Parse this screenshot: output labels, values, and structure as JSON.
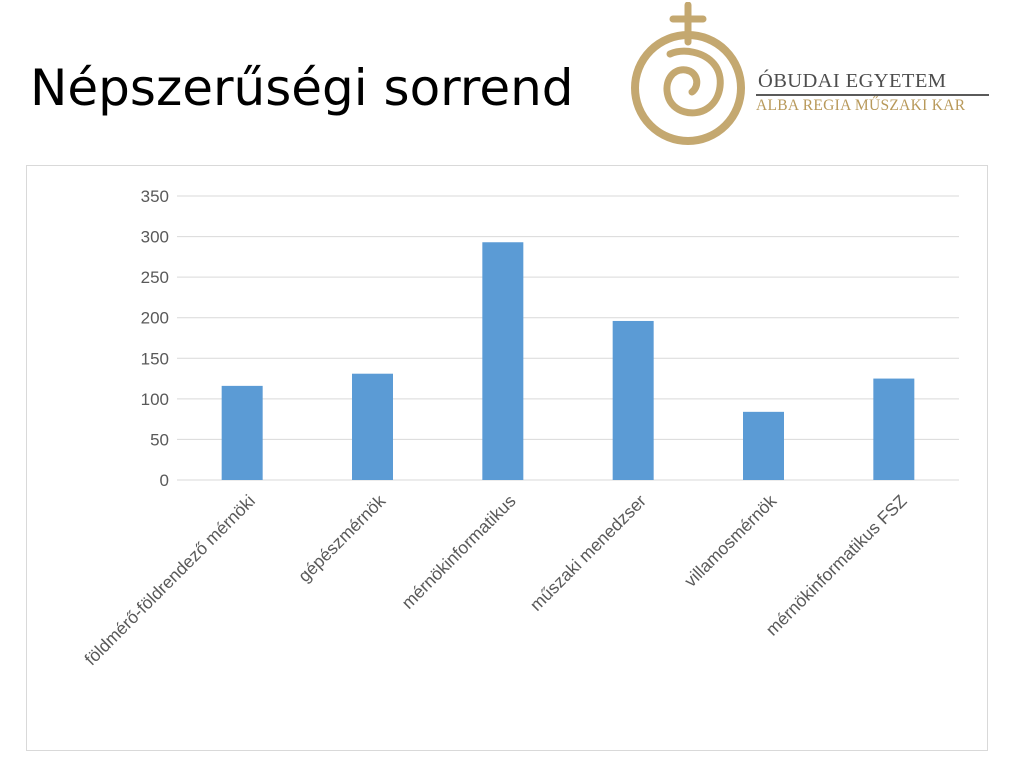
{
  "slide": {
    "title": "Népszerűségi sorrend"
  },
  "logo": {
    "name": "ÓBUDAI EGYETEM",
    "subtitle": "ALBA REGIA MŰSZAKI KAR"
  },
  "colors": {
    "bar": "#5b9bd5",
    "gold": "#c4a870",
    "gridline": "#d9d9d9",
    "axis_text": "#595959"
  },
  "chart_data": {
    "type": "bar",
    "title": "",
    "xlabel": "",
    "ylabel": "",
    "categories": [
      "földmérő-földrendező mérnöki",
      "gépészmérnök",
      "mérnökinformatikus",
      "műszaki menedzser",
      "villamosmérnök",
      "mérnökinformatikus FSZ"
    ],
    "values": [
      116,
      131,
      293,
      196,
      84,
      125
    ],
    "yticks": [
      "0",
      "50",
      "100",
      "150",
      "200",
      "250",
      "300",
      "350"
    ],
    "ylim": [
      0,
      350
    ],
    "grid": true,
    "legend": "none"
  }
}
